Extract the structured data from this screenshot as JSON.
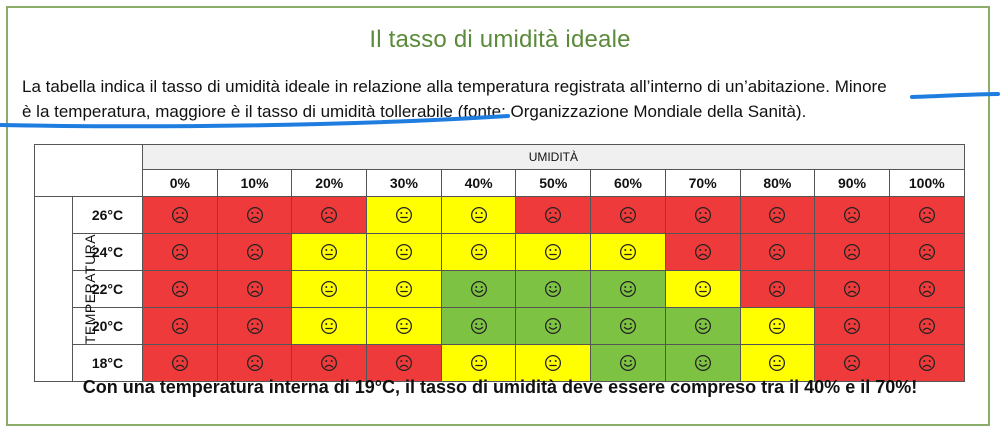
{
  "title": "Il tasso di umidità ideale",
  "description": {
    "line1": "La tabella indica il tasso di umidità ideale in relazione alla temperatura registrata all’interno di un’abitazione. Minore",
    "line2": "è la temperatura, maggiore è il tasso di umidità tollerabile (fonte: Organizzazione Mondiale della Sanità)."
  },
  "table": {
    "humidity_header": "UMIDITÀ",
    "temperature_header": "TEMPERATURA",
    "humidity_columns": [
      "0%",
      "10%",
      "20%",
      "30%",
      "40%",
      "50%",
      "60%",
      "70%",
      "80%",
      "90%",
      "100%"
    ],
    "rows": [
      {
        "temperature": "26°C",
        "cells": [
          "sad",
          "sad",
          "sad",
          "neutral",
          "neutral",
          "sad",
          "sad",
          "sad",
          "sad",
          "sad",
          "sad"
        ]
      },
      {
        "temperature": "24°C",
        "cells": [
          "sad",
          "sad",
          "neutral",
          "neutral",
          "neutral",
          "neutral",
          "neutral",
          "sad",
          "sad",
          "sad",
          "sad"
        ]
      },
      {
        "temperature": "22°C",
        "cells": [
          "sad",
          "sad",
          "neutral",
          "neutral",
          "happy",
          "happy",
          "happy",
          "neutral",
          "sad",
          "sad",
          "sad"
        ]
      },
      {
        "temperature": "20°C",
        "cells": [
          "sad",
          "sad",
          "neutral",
          "neutral",
          "happy",
          "happy",
          "happy",
          "happy",
          "neutral",
          "sad",
          "sad"
        ]
      },
      {
        "temperature": "18°C",
        "cells": [
          "sad",
          "sad",
          "sad",
          "sad",
          "neutral",
          "neutral",
          "happy",
          "happy",
          "neutral",
          "sad",
          "sad"
        ]
      }
    ],
    "legend_colors": {
      "sad": "#ee3a3a",
      "neutral": "#ffff00",
      "happy": "#7dc242"
    },
    "face_icons": {
      "sad": "sad-face-icon",
      "neutral": "neutral-face-icon",
      "happy": "happy-face-icon"
    }
  },
  "footer": "Con una temperatura interna di 19°C, il tasso di umidità deve essere compreso tra il 40% e il 70%!"
}
